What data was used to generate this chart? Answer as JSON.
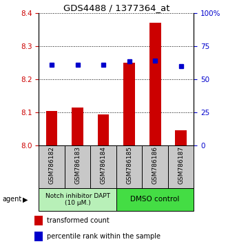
{
  "title": "GDS4488 / 1377364_at",
  "samples": [
    "GSM786182",
    "GSM786183",
    "GSM786184",
    "GSM786185",
    "GSM786186",
    "GSM786187"
  ],
  "red_values": [
    8.103,
    8.115,
    8.093,
    8.25,
    8.372,
    8.045
  ],
  "blue_values": [
    8.245,
    8.245,
    8.244,
    8.255,
    8.257,
    8.24
  ],
  "ylim_left": [
    8.0,
    8.4
  ],
  "ylim_right": [
    0,
    100
  ],
  "yticks_left": [
    8.0,
    8.1,
    8.2,
    8.3,
    8.4
  ],
  "yticks_right": [
    0,
    25,
    50,
    75,
    100
  ],
  "yticklabels_right": [
    "0",
    "25",
    "50",
    "75",
    "100%"
  ],
  "group1_label": "Notch inhibitor DAPT\n(10 μM.)",
  "group2_label": "DMSO control",
  "group1_color": "#b8f0b8",
  "group2_color": "#44dd44",
  "agent_label": "agent",
  "legend1_label": "transformed count",
  "legend2_label": "percentile rank within the sample",
  "bar_color": "#cc0000",
  "dot_color": "#0000cc",
  "bar_bottom": 8.0,
  "tick_bg_color": "#c8c8c8",
  "bar_width": 0.45
}
